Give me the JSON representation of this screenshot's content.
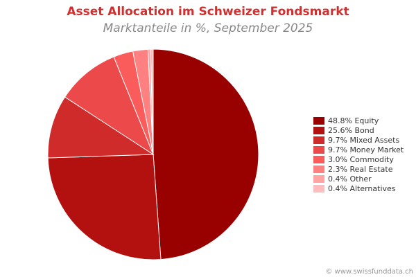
{
  "title": "Asset Allocation im Schweizer Fondsmarkt",
  "subtitle": "Marktanteile in %, September 2025",
  "footer": "© www.swissfunddata.ch",
  "chart_data": {
    "type": "pie",
    "start_angle_deg": 90,
    "direction": "clockwise",
    "legend_position": "right",
    "slices": [
      {
        "label": "Equity",
        "value": 48.8,
        "legend": "48.8% Equity",
        "color": "#990000"
      },
      {
        "label": "Bond",
        "value": 25.6,
        "legend": "25.6% Bond",
        "color": "#b31010"
      },
      {
        "label": "Mixed Assets",
        "value": 9.7,
        "legend": "9.7% Mixed Assets",
        "color": "#d02b2b"
      },
      {
        "label": "Money Market",
        "value": 9.7,
        "legend": "9.7% Money Market",
        "color": "#ec4a4a"
      },
      {
        "label": "Commodity",
        "value": 3.0,
        "legend": "3.0% Commodity",
        "color": "#fa5c5c"
      },
      {
        "label": "Real Estate",
        "value": 2.3,
        "legend": "2.3% Real Estate",
        "color": "#ff8080"
      },
      {
        "label": "Other",
        "value": 0.4,
        "legend": "0.4% Other",
        "color": "#ffa3a3"
      },
      {
        "label": "Alternatives",
        "value": 0.4,
        "legend": "0.4% Alternatives",
        "color": "#ffbcbc"
      }
    ]
  }
}
